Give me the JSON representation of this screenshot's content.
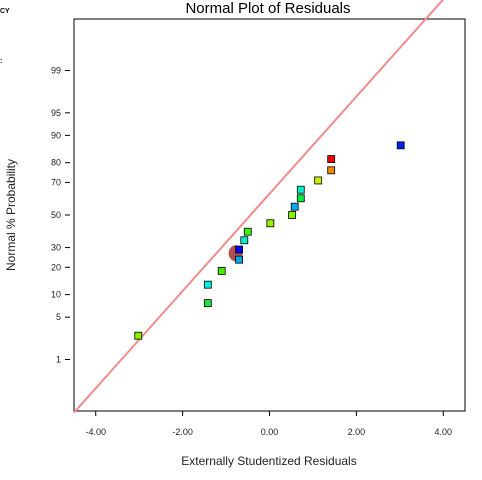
{
  "side_labels": [
    "CY",
    ":"
  ],
  "chart_data": {
    "type": "scatter",
    "title": "Normal Plot of Residuals",
    "xlabel": "Externally Studentized Residuals",
    "ylabel": "Normal % Probability",
    "xlim": [
      -4.5,
      4.5
    ],
    "xticks": [
      -4,
      -2,
      0,
      2,
      4
    ],
    "xtick_labels": [
      "-4.00",
      "-2.00",
      "0.00",
      "2.00",
      "4.00"
    ],
    "y_scale": "normal-probability",
    "yticks": [
      1,
      5,
      10,
      20,
      30,
      50,
      70,
      80,
      90,
      95,
      99
    ],
    "ytick_labels": [
      "1",
      "5",
      "10",
      "20",
      "30",
      "50",
      "70",
      "80",
      "90",
      "95",
      "99"
    ],
    "reference_line": {
      "from": [
        -4.5,
        0.0734
      ],
      "to": [
        4.5,
        99.9944
      ],
      "color": "#f08c8c"
    },
    "grid": false,
    "points": [
      {
        "x": -3.02,
        "y": 2.6,
        "color": "#88ee00"
      },
      {
        "x": -1.42,
        "y": 7.8,
        "color": "#22dd44"
      },
      {
        "x": -1.42,
        "y": 13.1,
        "color": "#00eedd"
      },
      {
        "x": -1.1,
        "y": 18.4,
        "color": "#44ee00"
      },
      {
        "x": -0.7,
        "y": 23.6,
        "color": "#00aaee"
      },
      {
        "x": -0.7,
        "y": 28.9,
        "color": "#0000ee"
      },
      {
        "x": -0.58,
        "y": 34.2,
        "color": "#00eecc"
      },
      {
        "x": -0.5,
        "y": 39.4,
        "color": "#44ee11"
      },
      {
        "x": 0.02,
        "y": 44.7,
        "color": "#99ee00"
      },
      {
        "x": 0.52,
        "y": 50.0,
        "color": "#88ee00"
      },
      {
        "x": 0.58,
        "y": 55.3,
        "color": "#00aaee"
      },
      {
        "x": 0.72,
        "y": 60.6,
        "color": "#00ee44"
      },
      {
        "x": 0.72,
        "y": 65.8,
        "color": "#00eecc"
      },
      {
        "x": 1.12,
        "y": 71.1,
        "color": "#ccee00"
      },
      {
        "x": 1.42,
        "y": 76.4,
        "color": "#ee8800"
      },
      {
        "x": 1.42,
        "y": 81.6,
        "color": "#ee0000"
      },
      {
        "x": 3.02,
        "y": 86.9,
        "color": "#0022ee"
      }
    ],
    "highlight_marker": {
      "x": -0.78,
      "y": 26.9,
      "color": "#b05050"
    }
  }
}
